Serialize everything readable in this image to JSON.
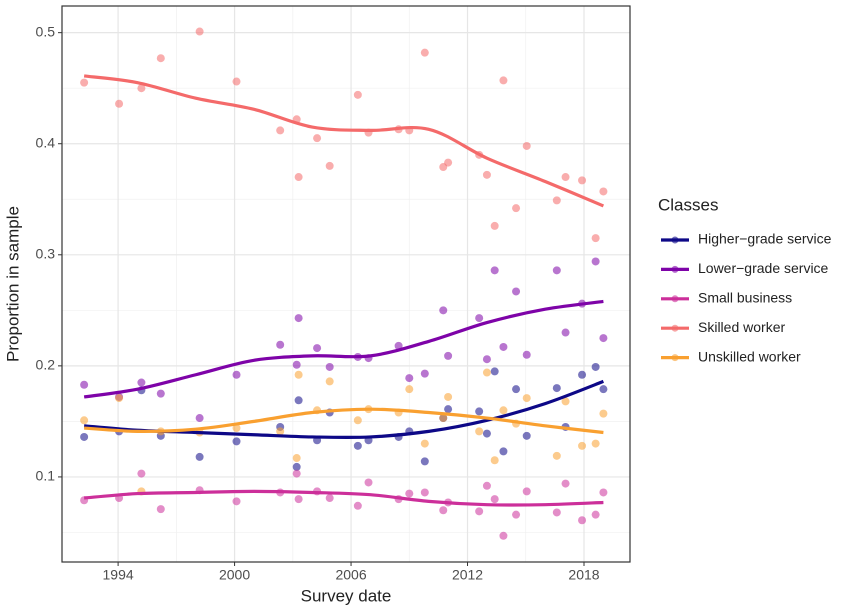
{
  "chart_data": {
    "type": "scatter-smooth",
    "x_label": "Survey date",
    "y_label": "Proportion in sample",
    "legend_title": "Classes",
    "legend_position": "right",
    "grid": true,
    "xlim": [
      1991.11,
      2020.37
    ],
    "xticks": [
      1994,
      2000,
      2006,
      2012,
      2018
    ],
    "ylim": [
      0.0234,
      0.524
    ],
    "yticks": [
      0.1,
      0.2,
      0.3,
      0.4,
      0.5
    ],
    "x": [
      1992.25,
      1994.05,
      1995.2,
      1996.2,
      1998.2,
      2000.1,
      2002.35,
      2003.2,
      2003.3,
      2004.25,
      2004.9,
      2006.35,
      2006.9,
      2008.45,
      2009.0,
      2009.8,
      2010.75,
      2011.0,
      2012.6,
      2013.0,
      2013.4,
      2013.85,
      2014.5,
      2015.05,
      2016.6,
      2017.05,
      2017.9,
      2018.6,
      2019.0
    ],
    "trend_x": [
      1992.25,
      1995,
      1998,
      2001,
      2004,
      2007,
      2010,
      2013,
      2016,
      2019
    ],
    "series": [
      {
        "name": "Higher−grade service",
        "color": "#0d0887",
        "values": [
          0.136,
          0.141,
          0.178,
          0.137,
          0.118,
          0.132,
          0.145,
          0.109,
          0.169,
          0.133,
          0.158,
          0.128,
          0.133,
          0.136,
          0.141,
          0.114,
          0.153,
          0.161,
          0.159,
          0.139,
          0.195,
          0.123,
          0.179,
          0.137,
          0.18,
          0.145,
          0.192,
          0.199,
          0.179
        ],
        "trend": [
          0.146,
          0.142,
          0.14,
          0.138,
          0.136,
          0.136,
          0.141,
          0.151,
          0.166,
          0.186
        ]
      },
      {
        "name": "Lower−grade service",
        "color": "#7e03a8",
        "values": [
          0.183,
          0.172,
          0.185,
          0.175,
          0.153,
          0.192,
          0.219,
          0.201,
          0.243,
          0.216,
          0.199,
          0.208,
          0.207,
          0.218,
          0.189,
          0.193,
          0.25,
          0.209,
          0.243,
          0.206,
          0.286,
          0.217,
          0.267,
          0.21,
          0.286,
          0.23,
          0.256,
          0.294,
          0.225
        ],
        "trend": [
          0.172,
          0.179,
          0.192,
          0.205,
          0.209,
          0.209,
          0.222,
          0.239,
          0.251,
          0.258
        ]
      },
      {
        "name": "Small business",
        "color": "#cc2f9a",
        "values": [
          0.079,
          0.081,
          0.103,
          0.071,
          0.088,
          0.078,
          0.086,
          0.103,
          0.08,
          0.087,
          0.081,
          0.074,
          0.095,
          0.08,
          0.085,
          0.086,
          0.07,
          0.077,
          0.069,
          0.092,
          0.08,
          0.047,
          0.066,
          0.087,
          0.068,
          0.094,
          0.061,
          0.066,
          0.086
        ],
        "trend": [
          0.081,
          0.085,
          0.086,
          0.087,
          0.086,
          0.084,
          0.078,
          0.075,
          0.075,
          0.077
        ]
      },
      {
        "name": "Skilled worker",
        "color": "#f46a6a",
        "values": [
          0.455,
          0.436,
          0.45,
          0.477,
          0.501,
          0.456,
          0.412,
          0.422,
          0.37,
          0.405,
          0.38,
          0.444,
          0.41,
          0.413,
          0.412,
          0.482,
          0.379,
          0.383,
          0.39,
          0.372,
          0.326,
          0.457,
          0.342,
          0.398,
          0.349,
          0.37,
          0.367,
          0.315,
          0.357
        ],
        "trend": [
          0.461,
          0.455,
          0.441,
          0.431,
          0.415,
          0.412,
          0.413,
          0.387,
          0.366,
          0.344
        ]
      },
      {
        "name": "Unskilled worker",
        "color": "#f9a030",
        "values": [
          0.151,
          0.171,
          0.087,
          0.141,
          0.14,
          0.144,
          0.141,
          0.117,
          0.192,
          0.16,
          0.186,
          0.151,
          0.161,
          0.158,
          0.179,
          0.13,
          0.153,
          0.172,
          0.141,
          0.194,
          0.115,
          0.16,
          0.148,
          0.171,
          0.119,
          0.168,
          0.128,
          0.13,
          0.157
        ],
        "trend": [
          0.144,
          0.141,
          0.143,
          0.15,
          0.158,
          0.161,
          0.158,
          0.153,
          0.146,
          0.14
        ]
      }
    ]
  }
}
